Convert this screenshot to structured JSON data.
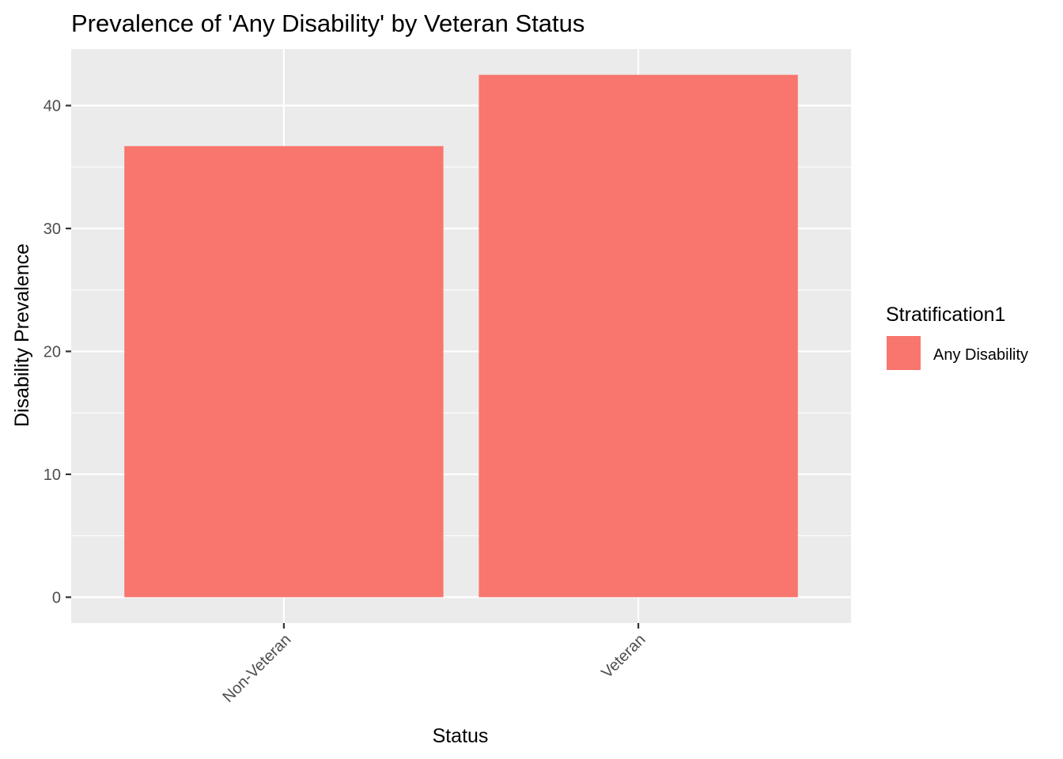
{
  "chart_data": {
    "type": "bar",
    "title": "Prevalence of 'Any Disability' by Veteran Status",
    "xlabel": "Status",
    "ylabel": "Disability Prevalence",
    "categories": [
      "Non-Veteran",
      "Veteran"
    ],
    "series": [
      {
        "name": "Any Disability",
        "values": [
          36.7,
          42.5
        ],
        "color": "#F8766D"
      }
    ],
    "ylim": [
      -2.1,
      44.6
    ],
    "yticks": [
      0,
      10,
      20,
      30,
      40
    ],
    "ytick_labels": [
      "0",
      "10",
      "20",
      "30",
      "40"
    ],
    "legend": {
      "title": "Stratification1",
      "placement": "right"
    },
    "grid": true,
    "panel_background": "#EBEBEB",
    "gridline_color": "#FFFFFF"
  }
}
